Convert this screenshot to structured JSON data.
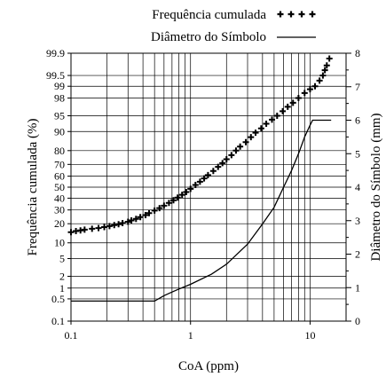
{
  "chart_data": {
    "type": "scatter",
    "x_scale": "log",
    "y_left_scale": "normal-probability",
    "xlabel": "CoA (ppm)",
    "ylabel_left": "Frequência cumulada (%)",
    "ylabel_right": "Diâmetro do Símbolo (mm)",
    "xlim": [
      0.1,
      20
    ],
    "ylim_left": [
      0.1,
      99.9
    ],
    "ylim_right": [
      0,
      8
    ],
    "x_ticks": [
      0.1,
      1,
      10
    ],
    "x_tick_labels": [
      "0.1",
      "1",
      "10"
    ],
    "y_left_ticks": [
      0.1,
      0.5,
      1,
      2,
      5,
      10,
      20,
      30,
      40,
      50,
      60,
      70,
      80,
      90,
      95,
      98,
      99,
      99.5,
      99.9
    ],
    "y_left_tick_labels": [
      "0.1",
      "0.5",
      "1",
      "2",
      "5",
      "10",
      "20",
      "30",
      "40",
      "50",
      "60",
      "70",
      "80",
      "90",
      "95",
      "98",
      "99",
      "99.5",
      "99.9"
    ],
    "y_right_ticks": [
      0,
      1,
      2,
      3,
      4,
      5,
      6,
      7,
      8
    ],
    "y_right_tick_labels": [
      "0",
      "1",
      "2",
      "3",
      "4",
      "5",
      "6",
      "7",
      "8"
    ],
    "grid": true,
    "legend_position": "top",
    "series": [
      {
        "name": "Frequência cumulada",
        "marker": "plus",
        "color": "#000000",
        "points": [
          [
            0.1,
            15
          ],
          [
            0.11,
            15.6
          ],
          [
            0.12,
            16
          ],
          [
            0.13,
            16.4
          ],
          [
            0.15,
            16.9
          ],
          [
            0.17,
            17.3
          ],
          [
            0.19,
            17.9
          ],
          [
            0.21,
            18.5
          ],
          [
            0.23,
            19.1
          ],
          [
            0.25,
            19.7
          ],
          [
            0.27,
            20.4
          ],
          [
            0.3,
            21.3
          ],
          [
            0.32,
            22.2
          ],
          [
            0.35,
            23.3
          ],
          [
            0.38,
            24.5
          ],
          [
            0.42,
            26
          ],
          [
            0.45,
            27.5
          ],
          [
            0.5,
            29.5
          ],
          [
            0.55,
            31.5
          ],
          [
            0.6,
            33.5
          ],
          [
            0.66,
            35.8
          ],
          [
            0.72,
            38.2
          ],
          [
            0.78,
            40.5
          ],
          [
            0.85,
            43
          ],
          [
            0.92,
            45.5
          ],
          [
            1.0,
            48.5
          ],
          [
            1.1,
            52
          ],
          [
            1.2,
            55
          ],
          [
            1.3,
            58
          ],
          [
            1.4,
            61
          ],
          [
            1.55,
            64.5
          ],
          [
            1.7,
            68
          ],
          [
            1.85,
            71
          ],
          [
            2.0,
            74
          ],
          [
            2.2,
            77
          ],
          [
            2.4,
            80
          ],
          [
            2.6,
            82.5
          ],
          [
            2.9,
            85
          ],
          [
            3.2,
            87.5
          ],
          [
            3.5,
            89.5
          ],
          [
            3.9,
            91.2
          ],
          [
            4.3,
            92.8
          ],
          [
            4.8,
            94
          ],
          [
            5.3,
            95
          ],
          [
            5.9,
            96
          ],
          [
            6.5,
            96.8
          ],
          [
            7.2,
            97.4
          ],
          [
            8.0,
            98
          ],
          [
            9.0,
            98.5
          ],
          [
            10.0,
            98.8
          ],
          [
            11.0,
            99.0
          ],
          [
            12.0,
            99.3
          ],
          [
            12.8,
            99.5
          ],
          [
            13.3,
            99.65
          ],
          [
            13.8,
            99.75
          ],
          [
            14.5,
            99.85
          ]
        ]
      },
      {
        "name": "Diâmetro do Símbolo",
        "marker": "line",
        "color": "#000000",
        "axis": "right",
        "points": [
          [
            0.1,
            0.6
          ],
          [
            0.5,
            0.6
          ],
          [
            0.6,
            0.76
          ],
          [
            0.7,
            0.87
          ],
          [
            0.8,
            0.96
          ],
          [
            1.0,
            1.1
          ],
          [
            1.5,
            1.4
          ],
          [
            2.0,
            1.7
          ],
          [
            3.0,
            2.3
          ],
          [
            4.0,
            2.9
          ],
          [
            5.0,
            3.4
          ],
          [
            6.0,
            4.0
          ],
          [
            7.0,
            4.5
          ],
          [
            8.0,
            5.0
          ],
          [
            9.0,
            5.5
          ],
          [
            10.0,
            5.85
          ],
          [
            10.5,
            6.0
          ],
          [
            15.0,
            6.0
          ]
        ]
      }
    ]
  }
}
